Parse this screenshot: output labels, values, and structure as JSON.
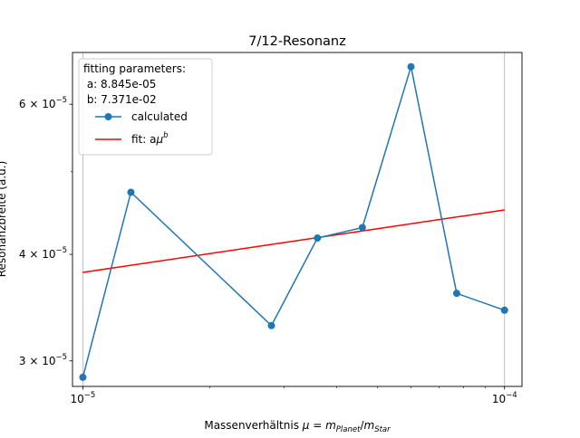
{
  "chart_data": {
    "type": "line",
    "title": "7/12-Resonanz",
    "xlabel_main": "Massenverhältnis ",
    "xlabel_mu": "μ",
    "xlabel_eq": " = ",
    "xlabel_m1": "m",
    "xlabel_sub1": "Planet",
    "xlabel_slash": "/",
    "xlabel_m2": "m",
    "xlabel_sub2": "Star",
    "ylabel": "Resonanzbreite (a.u.)",
    "x_scale": "log",
    "y_scale": "log",
    "xlim": [
      9.45e-06,
      0.00011
    ],
    "ylim": [
      2.8e-05,
      6.9e-05
    ],
    "x_ticks": [
      {
        "value": 1e-05,
        "base": "10",
        "exp": "−5"
      },
      {
        "value": 0.0001,
        "base": "10",
        "exp": "−4"
      }
    ],
    "x_minor_ticks": [
      2e-05,
      3e-05,
      4e-05,
      5e-05,
      6e-05,
      7e-05,
      8e-05,
      9e-05
    ],
    "y_ticks": [
      {
        "value": 3e-05,
        "mant": "3 × 10",
        "exp": "−5"
      },
      {
        "value": 4e-05,
        "mant": "4 × 10",
        "exp": "−5"
      },
      {
        "value": 6e-05,
        "mant": "6 × 10",
        "exp": "−5"
      }
    ],
    "y_minor_ticks": [
      5e-05
    ],
    "vertical_grid": true,
    "series": [
      {
        "name": "calculated",
        "color": "#1f77b4",
        "marker": "circle",
        "x": [
          1e-05,
          1.3e-05,
          2.8e-05,
          3.6e-05,
          4.6e-05,
          6e-05,
          7.7e-05,
          0.0001
        ],
        "y": [
          2.87e-05,
          4.73e-05,
          3.3e-05,
          4.18e-05,
          4.3e-05,
          6.64e-05,
          3.6e-05,
          3.44e-05
        ]
      },
      {
        "name": "fit: a",
        "name_mu": "μ",
        "name_exp": "b",
        "color": "#ff0000",
        "marker": "none",
        "x": [
          1e-05,
          0.0001
        ],
        "y": [
          3.81e-05,
          4.51e-05
        ]
      }
    ],
    "legend": {
      "placement": "top-left",
      "title_line1": "fitting parameters:",
      "title_line2": " a: 8.845e-05",
      "title_line3": " b: 7.371e-02"
    }
  }
}
